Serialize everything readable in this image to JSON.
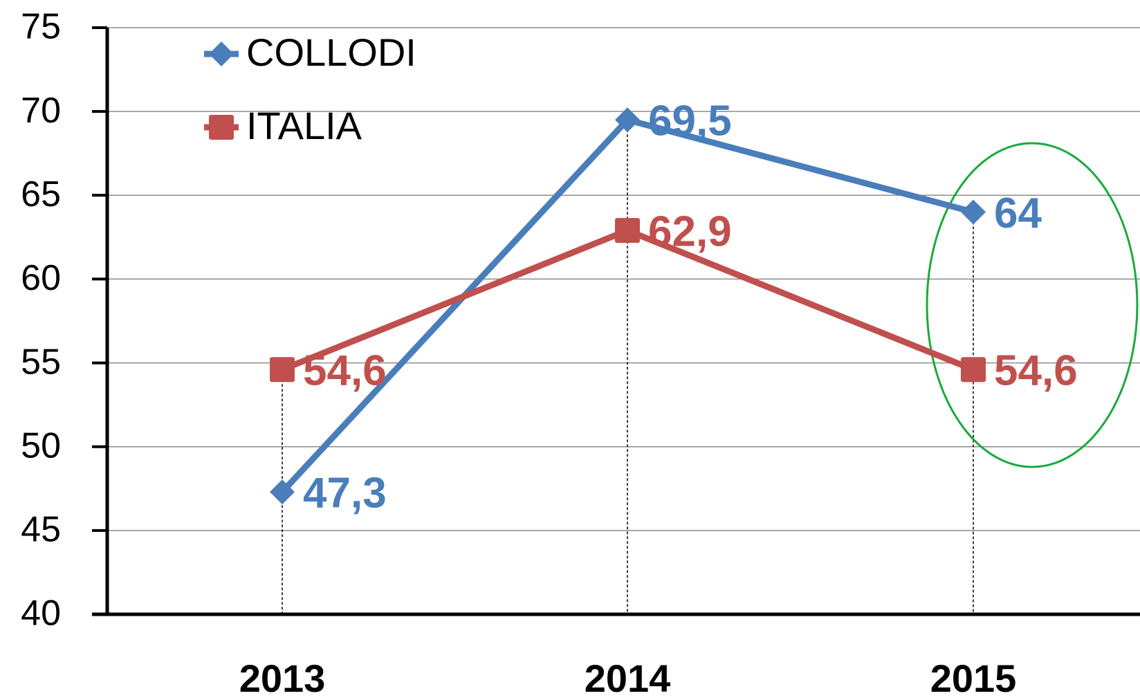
{
  "chart_data": {
    "type": "line",
    "categories": [
      "2013",
      "2014",
      "2015"
    ],
    "series": [
      {
        "name": "COLLODI",
        "color": "#4a7ebb",
        "values": [
          47.3,
          69.5,
          64
        ],
        "value_labels": [
          "47,3",
          "69,5",
          "64"
        ]
      },
      {
        "name": "ITALIA",
        "color": "#c0504d",
        "values": [
          54.6,
          62.9,
          54.6
        ],
        "value_labels": [
          "54,6",
          "62,9",
          "54,6"
        ]
      }
    ],
    "ylim": [
      40,
      75
    ],
    "yticks": [
      40,
      45,
      50,
      55,
      60,
      65,
      70,
      75
    ],
    "grid": true,
    "legend": "top-left"
  }
}
